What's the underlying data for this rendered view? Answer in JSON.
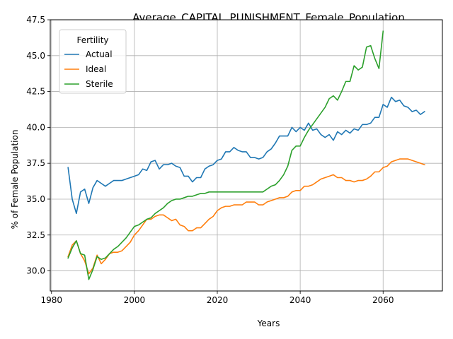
{
  "chart_data": {
    "type": "line",
    "title": "Average_CAPITAL_PUNISHMENT_Female_Population",
    "xlabel": "Years",
    "ylabel": "% of Female Population",
    "xlim": [
      1979.7,
      2074.3
    ],
    "ylim": [
      28.6,
      47.5
    ],
    "xticks": [
      1980,
      2000,
      2020,
      2040,
      2060
    ],
    "yticks": [
      30.0,
      32.5,
      35.0,
      37.5,
      40.0,
      42.5,
      45.0,
      47.5
    ],
    "xtick_labels": [
      "1980",
      "2000",
      "2020",
      "2040",
      "2060"
    ],
    "ytick_labels": [
      "30.0",
      "32.5",
      "35.0",
      "37.5",
      "40.0",
      "42.5",
      "45.0",
      "47.5"
    ],
    "grid": true,
    "legend": {
      "title": "Fertility",
      "placement": "upper-left"
    },
    "series": [
      {
        "name": "Actual",
        "color": "#1f77b4",
        "x": [
          1984,
          1985,
          1986,
          1987,
          1988,
          1989,
          1990,
          1991,
          1992,
          1993,
          1994,
          1995,
          1996,
          1997,
          1998,
          1999,
          2000,
          2001,
          2002,
          2003,
          2004,
          2005,
          2006,
          2007,
          2008,
          2009,
          2010,
          2011,
          2012,
          2013,
          2014,
          2015,
          2016,
          2017,
          2018,
          2019,
          2020,
          2021,
          2022,
          2023,
          2024,
          2025,
          2026,
          2027,
          2028,
          2029,
          2030,
          2031,
          2032,
          2033,
          2034,
          2035,
          2036,
          2037,
          2038,
          2039,
          2040,
          2041,
          2042,
          2043,
          2044,
          2045,
          2046,
          2047,
          2048,
          2049,
          2050,
          2051,
          2052,
          2053,
          2054,
          2055,
          2056,
          2057,
          2058,
          2059,
          2060,
          2061,
          2062,
          2063,
          2064,
          2065,
          2066,
          2067,
          2068,
          2069,
          2070
        ],
        "values": [
          37.2,
          35.0,
          34.0,
          35.5,
          35.7,
          34.7,
          35.8,
          36.3,
          36.1,
          35.9,
          36.1,
          36.3,
          36.3,
          36.3,
          36.4,
          36.5,
          36.6,
          36.7,
          37.1,
          37.0,
          37.6,
          37.7,
          37.1,
          37.4,
          37.4,
          37.5,
          37.3,
          37.2,
          36.6,
          36.6,
          36.2,
          36.5,
          36.5,
          37.1,
          37.3,
          37.4,
          37.7,
          37.8,
          38.3,
          38.3,
          38.6,
          38.4,
          38.3,
          38.3,
          37.9,
          37.9,
          37.8,
          37.9,
          38.3,
          38.5,
          38.9,
          39.4,
          39.4,
          39.4,
          40.0,
          39.7,
          40.0,
          39.8,
          40.3,
          39.8,
          39.9,
          39.5,
          39.3,
          39.5,
          39.1,
          39.7,
          39.5,
          39.8,
          39.6,
          39.9,
          39.8,
          40.2,
          40.2,
          40.3,
          40.7,
          40.7,
          41.6,
          41.4,
          42.1,
          41.8,
          41.9,
          41.5,
          41.4,
          41.1,
          41.2,
          40.9,
          41.1
        ]
      },
      {
        "name": "Ideal",
        "color": "#ff7f0e",
        "x": [
          1984,
          1985,
          1986,
          1987,
          1988,
          1989,
          1990,
          1991,
          1992,
          1993,
          1994,
          1995,
          1996,
          1997,
          1998,
          1999,
          2000,
          2001,
          2002,
          2003,
          2004,
          2005,
          2006,
          2007,
          2008,
          2009,
          2010,
          2011,
          2012,
          2013,
          2014,
          2015,
          2016,
          2017,
          2018,
          2019,
          2020,
          2021,
          2022,
          2023,
          2024,
          2025,
          2026,
          2027,
          2028,
          2029,
          2030,
          2031,
          2032,
          2033,
          2034,
          2035,
          2036,
          2037,
          2038,
          2039,
          2040,
          2041,
          2042,
          2043,
          2044,
          2045,
          2046,
          2047,
          2048,
          2049,
          2050,
          2051,
          2052,
          2053,
          2054,
          2055,
          2056,
          2057,
          2058,
          2059,
          2060,
          2061,
          2062,
          2063,
          2064,
          2065,
          2066,
          2067,
          2068,
          2069,
          2070
        ],
        "values": [
          31.0,
          31.8,
          32.1,
          31.2,
          30.7,
          29.8,
          30.2,
          31.1,
          30.5,
          30.8,
          31.2,
          31.3,
          31.3,
          31.4,
          31.7,
          32.0,
          32.5,
          32.8,
          33.2,
          33.6,
          33.6,
          33.8,
          33.9,
          33.9,
          33.7,
          33.5,
          33.6,
          33.2,
          33.1,
          32.8,
          32.8,
          33.0,
          33.0,
          33.3,
          33.6,
          33.8,
          34.2,
          34.4,
          34.5,
          34.5,
          34.6,
          34.6,
          34.6,
          34.8,
          34.8,
          34.8,
          34.6,
          34.6,
          34.8,
          34.9,
          35.0,
          35.1,
          35.1,
          35.2,
          35.5,
          35.6,
          35.6,
          35.9,
          35.9,
          36.0,
          36.2,
          36.4,
          36.5,
          36.6,
          36.7,
          36.5,
          36.5,
          36.3,
          36.3,
          36.2,
          36.3,
          36.3,
          36.4,
          36.6,
          36.9,
          36.9,
          37.2,
          37.3,
          37.6,
          37.7,
          37.8,
          37.8,
          37.8,
          37.7,
          37.6,
          37.5,
          37.4
        ]
      },
      {
        "name": "Sterile",
        "color": "#2ca02c",
        "x": [
          1984,
          1985,
          1986,
          1987,
          1988,
          1989,
          1990,
          1991,
          1992,
          1993,
          1994,
          1995,
          1996,
          1997,
          1998,
          1999,
          2000,
          2001,
          2002,
          2003,
          2004,
          2005,
          2006,
          2007,
          2008,
          2009,
          2010,
          2011,
          2012,
          2013,
          2014,
          2015,
          2016,
          2017,
          2018,
          2019,
          2020,
          2021,
          2022,
          2023,
          2024,
          2025,
          2026,
          2027,
          2028,
          2029,
          2030,
          2031,
          2032,
          2033,
          2034,
          2035,
          2036,
          2037,
          2038,
          2039,
          2040,
          2041,
          2042,
          2043,
          2044,
          2045,
          2046,
          2047,
          2048,
          2049,
          2050,
          2051,
          2052,
          2053,
          2054,
          2055,
          2056,
          2057,
          2058,
          2059,
          2060
        ],
        "values": [
          30.9,
          31.6,
          32.1,
          31.2,
          31.1,
          29.4,
          30.1,
          31.0,
          30.8,
          30.9,
          31.2,
          31.5,
          31.7,
          32.0,
          32.3,
          32.7,
          33.1,
          33.2,
          33.4,
          33.6,
          33.7,
          34.0,
          34.2,
          34.4,
          34.7,
          34.9,
          35.0,
          35.0,
          35.1,
          35.2,
          35.2,
          35.3,
          35.4,
          35.4,
          35.5,
          35.5,
          35.5,
          35.5,
          35.5,
          35.5,
          35.5,
          35.5,
          35.5,
          35.5,
          35.5,
          35.5,
          35.5,
          35.5,
          35.7,
          35.9,
          36.0,
          36.3,
          36.7,
          37.3,
          38.4,
          38.7,
          38.7,
          39.3,
          39.8,
          40.2,
          40.6,
          41.0,
          41.4,
          42.0,
          42.2,
          41.9,
          42.5,
          43.2,
          43.2,
          44.3,
          44.0,
          44.2,
          45.6,
          45.7,
          44.8,
          44.1,
          46.7
        ]
      }
    ]
  }
}
